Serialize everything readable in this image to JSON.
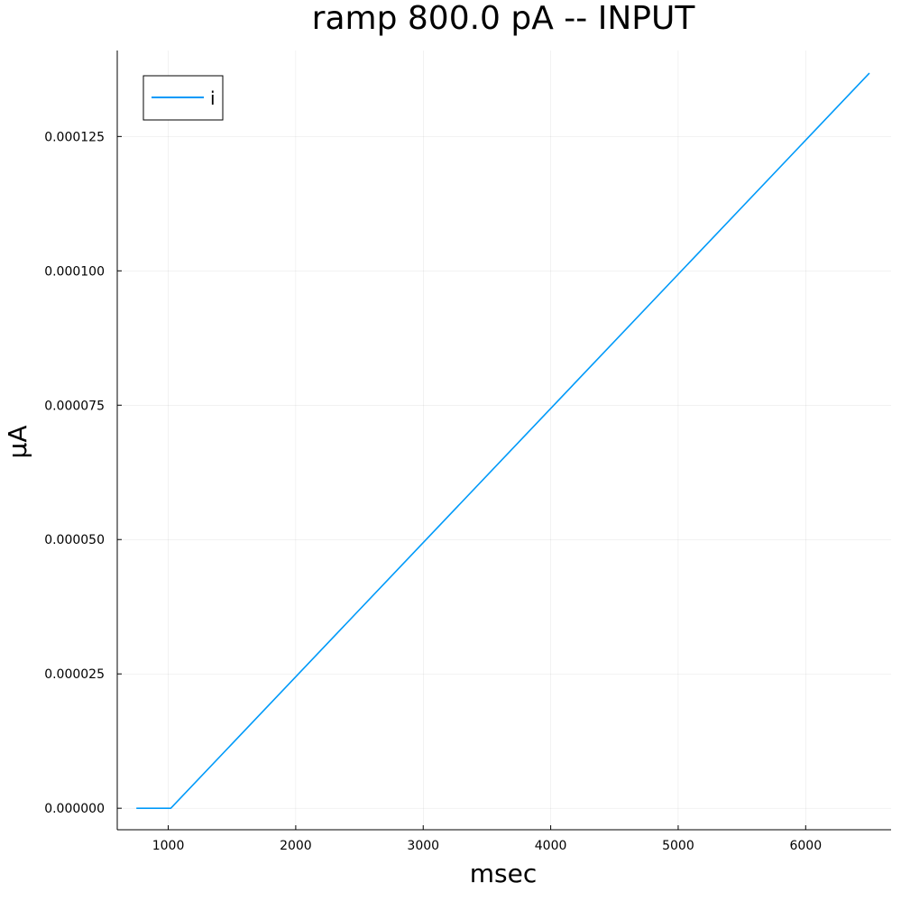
{
  "chart_data": {
    "type": "line",
    "title": "ramp 800.0 pA -- INPUT",
    "xlabel": "msec",
    "ylabel": "μA",
    "xlim": [
      600,
      6670
    ],
    "ylim": [
      -4e-06,
      0.000141
    ],
    "x_ticks": [
      1000,
      2000,
      3000,
      4000,
      5000,
      6000
    ],
    "x_tick_labels": [
      "1000",
      "2000",
      "3000",
      "4000",
      "5000",
      "6000"
    ],
    "y_ticks": [
      0,
      2.5e-05,
      5e-05,
      7.5e-05,
      0.0001,
      0.000125
    ],
    "y_tick_labels": [
      "0.000000",
      "0.000025",
      "0.000050",
      "0.000075",
      "0.000100",
      "0.000125"
    ],
    "grid": true,
    "legend_position": "top-left",
    "series": [
      {
        "name": "i",
        "color": "#009af9",
        "x": [
          750,
          1020,
          6500
        ],
        "y": [
          0,
          0,
          0.0001368
        ]
      }
    ]
  }
}
